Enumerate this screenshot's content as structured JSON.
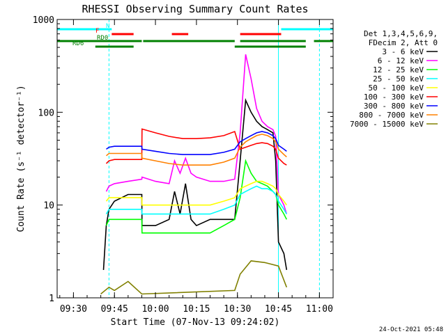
{
  "chart_data": {
    "type": "line",
    "title": "RHESSI Observing Summary Count Rates",
    "xlabel": "Start Time (07-Nov-13 09:24:02)",
    "ylabel": "Count Rate (s⁻¹ detector⁻¹)",
    "yscale": "log",
    "ylim": [
      1,
      1000
    ],
    "xlim": [
      "09:24:02",
      "11:05"
    ],
    "grid": false,
    "legend_position": "right",
    "x_ticks": [
      "09:30",
      "09:45",
      "10:00",
      "10:15",
      "10:30",
      "10:45",
      "11:00"
    ],
    "y_ticks": [
      "1",
      "10",
      "100",
      "1000"
    ],
    "legend_header": [
      "Det 1,3,4,5,6,9,",
      "FDecim 2, Att 0"
    ],
    "timestamp": "24-Oct-2021 05:48",
    "series": [
      {
        "name": "3 - 6 keV",
        "color": "#000000",
        "x": [
          "09:27",
          "09:27.5",
          "09:41",
          "09:42",
          "09:43",
          "09:45",
          "09:50",
          "09:55",
          "09:55.1",
          "10:00",
          "10:05",
          "10:07",
          "10:09",
          "10:11",
          "10:13",
          "10:15",
          "10:20",
          "10:25",
          "10:29",
          "10:31",
          "10:33",
          "10:35",
          "10:37",
          "10:39",
          "10:41",
          "10:43",
          "10:44",
          "10:45",
          "10:47",
          "10:48"
        ],
        "y": [
          null,
          null,
          2,
          6,
          9,
          11,
          13,
          13,
          6,
          6,
          7,
          14,
          8,
          17,
          7,
          6,
          7,
          7,
          7,
          30,
          135,
          100,
          80,
          70,
          65,
          60,
          30,
          4,
          3,
          2
        ]
      },
      {
        "name": "6 - 12 keV",
        "color": "#ff00ff",
        "x": [
          "09:42",
          "09:43",
          "09:45",
          "09:50",
          "09:55",
          "09:55.1",
          "10:00",
          "10:05",
          "10:07",
          "10:09",
          "10:11",
          "10:13",
          "10:15",
          "10:20",
          "10:25",
          "10:29",
          "10:31",
          "10:33",
          "10:35",
          "10:37",
          "10:39",
          "10:41",
          "10:43",
          "10:44",
          "10:45",
          "10:47",
          "10:48"
        ],
        "y": [
          14,
          16,
          17,
          18,
          19,
          20,
          18,
          17,
          30,
          22,
          32,
          22,
          20,
          18,
          18,
          19,
          60,
          420,
          230,
          110,
          80,
          70,
          65,
          55,
          13,
          10,
          8
        ]
      },
      {
        "name": "12 - 25 keV",
        "color": "#00ff00",
        "x": [
          "09:42",
          "09:43",
          "09:45",
          "09:50",
          "09:55",
          "09:55.1",
          "10:00",
          "10:05",
          "10:10",
          "10:15",
          "10:20",
          "10:25",
          "10:29",
          "10:31",
          "10:33",
          "10:35",
          "10:37",
          "10:39",
          "10:41",
          "10:43",
          "10:44",
          "10:45",
          "10:47",
          "10:48"
        ],
        "y": [
          6,
          7,
          7,
          7,
          7,
          5,
          5,
          5,
          5,
          5,
          5,
          6,
          7,
          12,
          30,
          22,
          18,
          17,
          16,
          14,
          13,
          10,
          8,
          7
        ]
      },
      {
        "name": "25 - 50 keV",
        "color": "#00ffff",
        "x": [
          "09:42",
          "09:43",
          "09:45",
          "09:50",
          "09:55",
          "09:55.1",
          "10:00",
          "10:05",
          "10:10",
          "10:15",
          "10:20",
          "10:25",
          "10:29",
          "10:31",
          "10:33",
          "10:35",
          "10:37",
          "10:39",
          "10:41",
          "10:43",
          "10:44",
          "10:45",
          "10:47",
          "10:48"
        ],
        "y": [
          8,
          9,
          9,
          9,
          9,
          8,
          8,
          8,
          8,
          8,
          8,
          9,
          10,
          13,
          14,
          15,
          16,
          15,
          15,
          14,
          13,
          11,
          9,
          8
        ]
      },
      {
        "name": "50 - 100 keV",
        "color": "#ffff00",
        "x": [
          "09:42",
          "09:43",
          "09:45",
          "09:50",
          "09:55",
          "09:55.1",
          "10:00",
          "10:05",
          "10:10",
          "10:15",
          "10:20",
          "10:25",
          "10:29",
          "10:31",
          "10:33",
          "10:35",
          "10:37",
          "10:39",
          "10:41",
          "10:43",
          "10:44",
          "10:45",
          "10:47",
          "10:48"
        ],
        "y": [
          11,
          12,
          12,
          12,
          12,
          10,
          10,
          10,
          10,
          10,
          10,
          11,
          12,
          15,
          16,
          17,
          18,
          18,
          17,
          16,
          15,
          13,
          11,
          10
        ]
      },
      {
        "name": "100 - 300 keV",
        "color": "#ff0000",
        "x": [
          "09:42",
          "09:43",
          "09:45",
          "09:50",
          "09:55",
          "09:55.1",
          "10:00",
          "10:05",
          "10:10",
          "10:15",
          "10:20",
          "10:25",
          "10:29",
          "10:31",
          "10:33",
          "10:35",
          "10:37",
          "10:39",
          "10:41",
          "10:43",
          "10:44",
          "10:45",
          "10:47",
          "10:48"
        ],
        "y": [
          28,
          30,
          31,
          31,
          31,
          66,
          60,
          55,
          52,
          52,
          53,
          56,
          62,
          40,
          42,
          44,
          46,
          47,
          46,
          43,
          40,
          32,
          28,
          27
        ]
      },
      {
        "name": "300 - 800 keV",
        "color": "#0000ff",
        "x": [
          "09:42",
          "09:43",
          "09:45",
          "09:50",
          "09:55",
          "09:55.1",
          "10:00",
          "10:05",
          "10:10",
          "10:15",
          "10:20",
          "10:25",
          "10:29",
          "10:31",
          "10:33",
          "10:35",
          "10:37",
          "10:39",
          "10:41",
          "10:43",
          "10:44",
          "10:45",
          "10:47",
          "10:48"
        ],
        "y": [
          40,
          42,
          43,
          43,
          43,
          40,
          38,
          36,
          35,
          35,
          35,
          37,
          40,
          48,
          52,
          56,
          60,
          62,
          60,
          56,
          52,
          44,
          40,
          38
        ]
      },
      {
        "name": "800 - 7000 keV",
        "color": "#ff8000",
        "x": [
          "09:42",
          "09:43",
          "09:45",
          "09:50",
          "09:55",
          "09:55.1",
          "10:00",
          "10:05",
          "10:10",
          "10:15",
          "10:20",
          "10:25",
          "10:29",
          "10:31",
          "10:33",
          "10:35",
          "10:37",
          "10:39",
          "10:41",
          "10:43",
          "10:44",
          "10:45",
          "10:47",
          "10:48"
        ],
        "y": [
          34,
          36,
          36,
          36,
          36,
          32,
          30,
          28,
          27,
          27,
          27,
          29,
          32,
          42,
          48,
          52,
          56,
          58,
          56,
          52,
          48,
          40,
          35,
          33
        ]
      },
      {
        "name": "7000 - 15000 keV",
        "color": "#808000",
        "x": [
          "09:40",
          "09:43",
          "09:45",
          "09:50",
          "09:55",
          "10:29",
          "10:31",
          "10:35",
          "10:40",
          "10:45",
          "10:48"
        ],
        "y": [
          1.1,
          1.3,
          1.2,
          1.5,
          1.1,
          1.2,
          1.8,
          2.5,
          2.4,
          2.2,
          1.3
        ]
      }
    ],
    "state_bars": [
      {
        "label": "N",
        "color": "#00ffff",
        "segments": [
          [
            "09:24",
            "09:44"
          ],
          [
            "10:46",
            "11:05"
          ]
        ]
      },
      {
        "label": "F",
        "color": "#ff0000",
        "segments": [
          [
            "09:44",
            "09:52"
          ],
          [
            "10:06",
            "10:12"
          ],
          [
            "10:31",
            "10:46"
          ]
        ]
      },
      {
        "label": "RD0",
        "color": "#008000",
        "segments": [
          [
            "09:24",
            "09:55"
          ],
          [
            "09:55.5",
            "10:29"
          ],
          [
            "10:31",
            "10:55"
          ],
          [
            "10:58",
            "11:05"
          ]
        ]
      },
      {
        "label": "RD6",
        "color": "#008000",
        "segments": [
          [
            "09:38",
            "09:52"
          ],
          [
            "10:29",
            "10:55"
          ]
        ]
      }
    ],
    "vertical_markers": [
      {
        "x": "09:24:02",
        "color": "#00ffff",
        "style": "solid"
      },
      {
        "x": "09:43",
        "color": "#00ffff",
        "style": "dashed"
      },
      {
        "x": "10:45",
        "color": "#00ffff",
        "style": "solid"
      },
      {
        "x": "11:00",
        "color": "#00ffff",
        "style": "dashed"
      }
    ]
  }
}
